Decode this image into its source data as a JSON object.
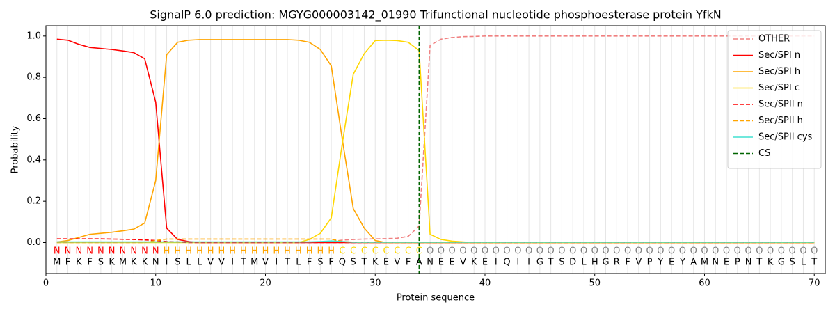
{
  "chart_data": {
    "type": "line",
    "title": "SignalP 6.0 prediction: MGYG000003142_01990 Trifunctional nucleotide phosphoesterase protein YfkN",
    "xlabel": "Protein sequence",
    "ylabel": "Probability",
    "xlim": [
      0,
      71
    ],
    "ylim": [
      -0.15,
      1.05
    ],
    "xticks": [
      0,
      10,
      20,
      30,
      40,
      50,
      60,
      70
    ],
    "yticks": [
      {
        "value": 0,
        "label": "0.0"
      },
      {
        "value": 0.2,
        "label": "0.2"
      },
      {
        "value": 0.4,
        "label": "0.4"
      },
      {
        "value": 0.6,
        "label": "0.6"
      },
      {
        "value": 0.8,
        "label": "0.8"
      },
      {
        "value": 1.0,
        "label": "1.0"
      }
    ],
    "legend": "upper right",
    "x": [
      1,
      2,
      3,
      4,
      5,
      6,
      7,
      8,
      9,
      10,
      11,
      12,
      13,
      14,
      15,
      16,
      17,
      18,
      19,
      20,
      21,
      22,
      23,
      24,
      25,
      26,
      27,
      28,
      29,
      30,
      31,
      32,
      33,
      34,
      35,
      36,
      37,
      38,
      39,
      40,
      41,
      42,
      43,
      44,
      45,
      46,
      47,
      48,
      49,
      50,
      51,
      52,
      53,
      54,
      55,
      56,
      57,
      58,
      59,
      60,
      61,
      62,
      63,
      64,
      65,
      66,
      67,
      68,
      69,
      70
    ],
    "residues": [
      "M",
      "F",
      "K",
      "F",
      "S",
      "K",
      "M",
      "K",
      "K",
      "N",
      "I",
      "S",
      "L",
      "L",
      "V",
      "V",
      "I",
      "T",
      "M",
      "V",
      "I",
      "T",
      "L",
      "F",
      "S",
      "F",
      "Q",
      "S",
      "T",
      "K",
      "E",
      "V",
      "F",
      "A",
      "N",
      "E",
      "E",
      "V",
      "K",
      "E",
      "I",
      "Q",
      "I",
      "I",
      "G",
      "T",
      "S",
      "D",
      "L",
      "H",
      "G",
      "R",
      "F",
      "V",
      "P",
      "Y",
      "E",
      "Y",
      "A",
      "M",
      "N",
      "E",
      "P",
      "N",
      "T",
      "K",
      "G",
      "S",
      "L",
      "T"
    ],
    "region_labels": [
      "N",
      "N",
      "N",
      "N",
      "N",
      "N",
      "N",
      "N",
      "N",
      "N",
      "H",
      "H",
      "H",
      "H",
      "H",
      "H",
      "H",
      "H",
      "H",
      "H",
      "H",
      "H",
      "H",
      "H",
      "H",
      "H",
      "C",
      "C",
      "C",
      "C",
      "C",
      "C",
      "C",
      "C",
      "O",
      "O",
      "O",
      "O",
      "O",
      "O",
      "O",
      "O",
      "O",
      "O",
      "O",
      "O",
      "O",
      "O",
      "O",
      "O",
      "O",
      "O",
      "O",
      "O",
      "O",
      "O",
      "O",
      "O",
      "O",
      "O",
      "O",
      "O",
      "O",
      "O",
      "O",
      "O",
      "O",
      "O",
      "O",
      "O"
    ],
    "region_colors": {
      "N": "#ff0000",
      "H": "#ffa500",
      "C": "#ffd700",
      "O": "#808080"
    },
    "series": [
      {
        "name": "OTHER",
        "color": "#f08080",
        "dash": "dashed",
        "values": [
          0.001,
          0.001,
          0.001,
          0.001,
          0.001,
          0.001,
          0.001,
          0.001,
          0.001,
          0.001,
          0.001,
          0.001,
          0.001,
          0.001,
          0.001,
          0.001,
          0.001,
          0.001,
          0.001,
          0.001,
          0.001,
          0.001,
          0.001,
          0.001,
          0.001,
          0.005,
          0.012,
          0.015,
          0.017,
          0.018,
          0.019,
          0.021,
          0.03,
          0.08,
          0.955,
          0.985,
          0.993,
          0.997,
          0.998,
          1.0,
          1.0,
          1.0,
          1.0,
          1.0,
          1.0,
          1.0,
          1.0,
          1.0,
          1.0,
          1.0,
          1.0,
          1.0,
          1.0,
          1.0,
          1.0,
          1.0,
          1.0,
          1.0,
          1.0,
          1.0,
          1.0,
          1.0,
          1.0,
          1.0,
          1.0,
          1.0,
          1.0,
          1.0,
          1.0,
          1.0
        ]
      },
      {
        "name": "Sec/SPI n",
        "color": "#ff0000",
        "dash": "solid",
        "values": [
          0.985,
          0.98,
          0.96,
          0.945,
          0.94,
          0.935,
          0.928,
          0.92,
          0.89,
          0.68,
          0.07,
          0.015,
          0.005,
          0,
          0,
          0,
          0,
          0,
          0,
          0,
          0,
          0,
          0,
          0,
          0,
          0,
          0,
          0,
          0,
          0,
          0,
          0,
          0,
          0,
          0,
          0,
          0,
          0,
          0,
          0,
          0,
          0,
          0,
          0,
          0,
          0,
          0,
          0,
          0,
          0,
          0,
          0,
          0,
          0,
          0,
          0,
          0,
          0,
          0,
          0,
          0,
          0,
          0,
          0,
          0,
          0,
          0,
          0,
          0,
          0
        ]
      },
      {
        "name": "Sec/SPI h",
        "color": "#ffa500",
        "dash": "solid",
        "values": [
          0.003,
          0.01,
          0.025,
          0.04,
          0.045,
          0.05,
          0.057,
          0.065,
          0.095,
          0.3,
          0.91,
          0.97,
          0.98,
          0.983,
          0.983,
          0.983,
          0.983,
          0.983,
          0.983,
          0.983,
          0.983,
          0.983,
          0.98,
          0.97,
          0.935,
          0.855,
          0.5,
          0.165,
          0.07,
          0.01,
          0,
          0,
          0,
          0,
          0,
          0,
          0,
          0,
          0,
          0,
          0,
          0,
          0,
          0,
          0,
          0,
          0,
          0,
          0,
          0,
          0,
          0,
          0,
          0,
          0,
          0,
          0,
          0,
          0,
          0,
          0,
          0,
          0,
          0,
          0,
          0,
          0,
          0,
          0,
          0
        ]
      },
      {
        "name": "Sec/SPI c",
        "color": "#ffd700",
        "dash": "solid",
        "values": [
          0,
          0,
          0,
          0,
          0,
          0,
          0,
          0,
          0,
          0,
          0,
          0,
          0,
          0,
          0,
          0,
          0,
          0,
          0,
          0,
          0,
          0,
          0,
          0.015,
          0.045,
          0.12,
          0.48,
          0.815,
          0.915,
          0.978,
          0.98,
          0.978,
          0.97,
          0.93,
          0.04,
          0.015,
          0.007,
          0.003,
          0,
          0,
          0,
          0,
          0,
          0,
          0,
          0,
          0,
          0,
          0,
          0,
          0,
          0,
          0,
          0,
          0,
          0,
          0,
          0,
          0,
          0,
          0,
          0,
          0,
          0,
          0,
          0,
          0,
          0,
          0,
          0
        ]
      },
      {
        "name": "Sec/SPII n",
        "color": "#ff0000",
        "dash": "dashed",
        "values": [
          0.018,
          0.018,
          0.018,
          0.018,
          0.018,
          0.017,
          0.016,
          0.015,
          0.013,
          0.01,
          0.005,
          0.003,
          0,
          0,
          0,
          0,
          0,
          0,
          0,
          0,
          0,
          0,
          0,
          0,
          0,
          0,
          0,
          0,
          0,
          0,
          0,
          0,
          0,
          0,
          0,
          0,
          0,
          0,
          0,
          0,
          0,
          0,
          0,
          0,
          0,
          0,
          0,
          0,
          0,
          0,
          0,
          0,
          0,
          0,
          0,
          0,
          0,
          0,
          0,
          0,
          0,
          0,
          0,
          0,
          0,
          0,
          0,
          0,
          0,
          0
        ]
      },
      {
        "name": "Sec/SPII h",
        "color": "#ffa500",
        "dash": "dashed",
        "values": [
          0,
          0,
          0,
          0,
          0,
          0,
          0,
          0,
          0,
          0.01,
          0.017,
          0.017,
          0.017,
          0.017,
          0.017,
          0.017,
          0.017,
          0.017,
          0.017,
          0.017,
          0.017,
          0.017,
          0.017,
          0.017,
          0.017,
          0.017,
          0.005,
          0.002,
          0,
          0,
          0,
          0,
          0,
          0,
          0,
          0,
          0,
          0,
          0,
          0,
          0,
          0,
          0,
          0,
          0,
          0,
          0,
          0,
          0,
          0,
          0,
          0,
          0,
          0,
          0,
          0,
          0,
          0,
          0,
          0,
          0,
          0,
          0,
          0,
          0,
          0,
          0,
          0,
          0,
          0
        ]
      },
      {
        "name": "Sec/SPII cys",
        "color": "#40e0d0",
        "dash": "solid",
        "values": [
          0.003,
          0.003,
          0.003,
          0.003,
          0.003,
          0.003,
          0.003,
          0.003,
          0.003,
          0.003,
          0.003,
          0.003,
          0.003,
          0.003,
          0.003,
          0.003,
          0.003,
          0.003,
          0.003,
          0.003,
          0.003,
          0.003,
          0.003,
          0.003,
          0.005,
          0.008,
          0.005,
          0.002,
          0.002,
          0.002,
          0.002,
          0.002,
          0.002,
          0.002,
          0.002,
          0.002,
          0.002,
          0.002,
          0.002,
          0.002,
          0.002,
          0.002,
          0.002,
          0.002,
          0.002,
          0.002,
          0.002,
          0.002,
          0.002,
          0.002,
          0.002,
          0.002,
          0.002,
          0.002,
          0.002,
          0.002,
          0.002,
          0.002,
          0.002,
          0.002,
          0.002,
          0.002,
          0.002,
          0.002,
          0.002,
          0.002,
          0.002,
          0.002,
          0.002,
          0.002
        ]
      }
    ],
    "cs": {
      "name": "CS",
      "color": "#006400",
      "position": 34
    }
  }
}
